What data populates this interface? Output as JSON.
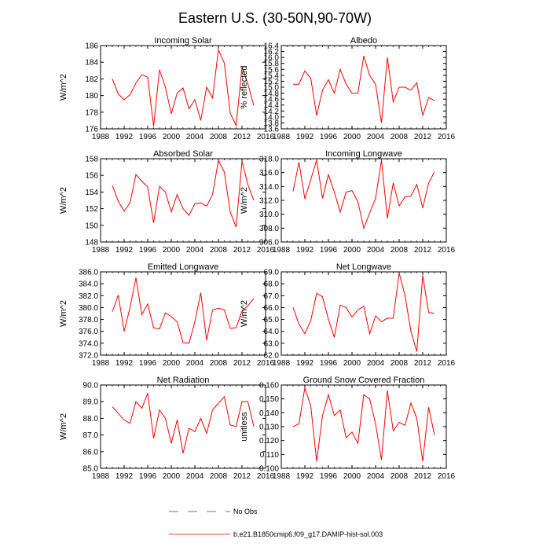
{
  "title": "Eastern U.S. (30-50N,90-70W)",
  "legend": {
    "obs_label": "No Obs",
    "model_label": "b.e21.B1850cmip6.f09_g17.DAMIP-hist-sol.003",
    "obs_color": "#3a3aa8",
    "model_color": "#ff0000"
  },
  "chart_data": [
    {
      "type": "line",
      "title": "Incoming Solar",
      "ylabel": "W/m^2",
      "xlim": [
        1988,
        2016
      ],
      "xticks": [
        1988,
        1992,
        1996,
        2000,
        2004,
        2008,
        2012,
        2016
      ],
      "ylim": [
        176,
        186
      ],
      "yticks": [
        "176",
        "178",
        "180",
        "182",
        "184",
        "186"
      ],
      "x": [
        1990,
        1991,
        1992,
        1993,
        1994,
        1995,
        1996,
        1997,
        1998,
        1999,
        2000,
        2001,
        2002,
        2003,
        2004,
        2005,
        2006,
        2007,
        2008,
        2009,
        2010,
        2011,
        2012,
        2013,
        2014
      ],
      "series": [
        {
          "values": [
            182.0,
            180.2,
            179.5,
            180.1,
            181.5,
            182.5,
            182.2,
            176.3,
            183.1,
            181.0,
            177.8,
            180.3,
            180.9,
            178.4,
            179.5,
            177.0,
            181.0,
            179.7,
            185.5,
            183.9,
            177.9,
            176.4,
            183.4,
            181.4,
            178.8
          ]
        }
      ]
    },
    {
      "type": "line",
      "title": "Albedo",
      "ylabel": "% reflected",
      "xlim": [
        1988,
        2016
      ],
      "xticks": [
        1988,
        1992,
        1996,
        2000,
        2004,
        2008,
        2012,
        2016
      ],
      "ylim": [
        13.6,
        16.4
      ],
      "yticks": [
        "13.6",
        "13.8",
        "14.0",
        "14.2",
        "14.4",
        "14.6",
        "14.8",
        "15.0",
        "15.2",
        "15.4",
        "15.6",
        "15.8",
        "16.0",
        "16.2",
        "16.4"
      ],
      "x": [
        1990,
        1991,
        1992,
        1993,
        1994,
        1995,
        1996,
        1997,
        1998,
        1999,
        2000,
        2001,
        2002,
        2003,
        2004,
        2005,
        2006,
        2007,
        2008,
        2009,
        2010,
        2011,
        2012,
        2013,
        2014
      ],
      "series": [
        {
          "values": [
            15.1,
            15.1,
            15.55,
            15.3,
            14.05,
            14.9,
            15.25,
            14.8,
            15.6,
            15.1,
            14.8,
            14.8,
            16.05,
            15.4,
            15.1,
            13.8,
            16.0,
            14.5,
            15.0,
            15.0,
            14.9,
            15.15,
            14.05,
            14.65,
            14.55
          ]
        }
      ]
    },
    {
      "type": "line",
      "title": "Absorbed Solar",
      "ylabel": "W/m^2",
      "xlim": [
        1988,
        2016
      ],
      "xticks": [
        1988,
        1992,
        1996,
        2000,
        2004,
        2008,
        2012,
        2016
      ],
      "ylim": [
        148,
        158
      ],
      "yticks": [
        "148",
        "150",
        "152",
        "154",
        "156",
        "158"
      ],
      "x": [
        1990,
        1991,
        1992,
        1993,
        1994,
        1995,
        1996,
        1997,
        1998,
        1999,
        2000,
        2001,
        2002,
        2003,
        2004,
        2005,
        2006,
        2007,
        2008,
        2009,
        2010,
        2011,
        2012,
        2013,
        2014
      ],
      "series": [
        {
          "values": [
            154.8,
            152.9,
            151.7,
            152.7,
            156.1,
            155.3,
            154.6,
            150.3,
            154.7,
            154.0,
            151.6,
            153.7,
            152.0,
            151.2,
            152.6,
            152.7,
            152.3,
            153.7,
            157.8,
            156.4,
            151.6,
            149.8,
            157.7,
            154.9,
            153.0
          ]
        }
      ]
    },
    {
      "type": "line",
      "title": "Incoming Longwave",
      "ylabel": "W/m^2",
      "xlim": [
        1988,
        2016
      ],
      "xticks": [
        1988,
        1992,
        1996,
        2000,
        2004,
        2008,
        2012,
        2016
      ],
      "ylim": [
        306,
        318
      ],
      "yticks": [
        "306.0",
        "308.0",
        "310.0",
        "312.0",
        "314.0",
        "316.0",
        "318.0"
      ],
      "x": [
        1990,
        1991,
        1992,
        1993,
        1994,
        1995,
        1996,
        1997,
        1998,
        1999,
        2000,
        2001,
        2002,
        2003,
        2004,
        2005,
        2006,
        2007,
        2008,
        2009,
        2010,
        2011,
        2012,
        2013,
        2014
      ],
      "series": [
        {
          "values": [
            313.3,
            317.5,
            312.2,
            315.0,
            317.8,
            312.3,
            315.7,
            313.2,
            310.3,
            313.2,
            313.4,
            311.8,
            308.0,
            310.2,
            312.3,
            317.8,
            309.4,
            314.5,
            311.2,
            312.5,
            312.6,
            314.3,
            310.9,
            314.5,
            316.1
          ]
        }
      ]
    },
    {
      "type": "line",
      "title": "Emitted Longwave",
      "ylabel": "W/m^2",
      "xlim": [
        1988,
        2016
      ],
      "xticks": [
        1988,
        1992,
        1996,
        2000,
        2004,
        2008,
        2012,
        2016
      ],
      "ylim": [
        372,
        386
      ],
      "yticks": [
        "372.0",
        "374.0",
        "376.0",
        "378.0",
        "380.0",
        "382.0",
        "384.0",
        "386.0"
      ],
      "x": [
        1990,
        1991,
        1992,
        1993,
        1994,
        1995,
        1996,
        1997,
        1998,
        1999,
        2000,
        2001,
        2002,
        2003,
        2004,
        2005,
        2006,
        2007,
        2008,
        2009,
        2010,
        2011,
        2012,
        2013,
        2014
      ],
      "series": [
        {
          "values": [
            379.3,
            382.1,
            376.0,
            380.0,
            385.0,
            378.8,
            380.6,
            376.6,
            376.4,
            379.1,
            378.5,
            377.6,
            374.1,
            374.0,
            377.6,
            382.5,
            374.5,
            379.6,
            379.9,
            379.6,
            376.5,
            376.6,
            379.4,
            380.3,
            381.5
          ]
        }
      ]
    },
    {
      "type": "line",
      "title": "Net Longwave",
      "ylabel": "W/m^2",
      "xlim": [
        1988,
        2016
      ],
      "xticks": [
        1988,
        1992,
        1996,
        2000,
        2004,
        2008,
        2012,
        2016
      ],
      "ylim": [
        62,
        69
      ],
      "yticks": [
        "62.0",
        "63.0",
        "64.0",
        "65.0",
        "66.0",
        "67.0",
        "68.0",
        "69.0"
      ],
      "x": [
        1990,
        1991,
        1992,
        1993,
        1994,
        1995,
        1996,
        1997,
        1998,
        1999,
        2000,
        2001,
        2002,
        2003,
        2004,
        2005,
        2006,
        2007,
        2008,
        2009,
        2010,
        2011,
        2012,
        2013,
        2014
      ],
      "series": [
        {
          "values": [
            66.0,
            64.6,
            63.8,
            64.9,
            67.2,
            66.9,
            65.0,
            63.5,
            66.2,
            66.0,
            65.2,
            65.8,
            66.1,
            63.8,
            65.3,
            64.8,
            65.1,
            65.1,
            68.9,
            67.0,
            64.0,
            62.3,
            68.7,
            65.6,
            65.5
          ]
        }
      ]
    },
    {
      "type": "line",
      "title": "Net Radiation",
      "ylabel": "W/m^2",
      "xlim": [
        1988,
        2016
      ],
      "xticks": [
        1988,
        1992,
        1996,
        2000,
        2004,
        2008,
        2012,
        2016
      ],
      "ylim": [
        85,
        90
      ],
      "yticks": [
        "85.0",
        "86.0",
        "87.0",
        "88.0",
        "89.0",
        "90.0"
      ],
      "x": [
        1990,
        1991,
        1992,
        1993,
        1994,
        1995,
        1996,
        1997,
        1998,
        1999,
        2000,
        2001,
        2002,
        2003,
        2004,
        2005,
        2006,
        2007,
        2008,
        2009,
        2010,
        2011,
        2012,
        2013,
        2014
      ],
      "series": [
        {
          "values": [
            88.7,
            88.3,
            87.9,
            87.7,
            89.0,
            88.6,
            89.5,
            86.8,
            88.5,
            88.0,
            86.5,
            87.9,
            85.9,
            87.4,
            87.2,
            88.0,
            87.1,
            88.5,
            88.9,
            89.3,
            87.6,
            87.5,
            89.0,
            89.0,
            87.5
          ]
        }
      ]
    },
    {
      "type": "line",
      "title": "Ground Snow Covered Fraction",
      "ylabel": "unitless",
      "xlim": [
        1988,
        2016
      ],
      "xticks": [
        1988,
        1992,
        1996,
        2000,
        2004,
        2008,
        2012,
        2016
      ],
      "ylim": [
        0.1,
        0.16
      ],
      "yticks": [
        "0.100",
        "0.110",
        "0.120",
        "0.130",
        "0.140",
        "0.150",
        "0.160"
      ],
      "x": [
        1990,
        1991,
        1992,
        1993,
        1994,
        1995,
        1996,
        1997,
        1998,
        1999,
        2000,
        2001,
        2002,
        2003,
        2004,
        2005,
        2006,
        2007,
        2008,
        2009,
        2010,
        2011,
        2012,
        2013,
        2014
      ],
      "series": [
        {
          "values": [
            0.13,
            0.132,
            0.158,
            0.145,
            0.105,
            0.138,
            0.153,
            0.138,
            0.142,
            0.122,
            0.126,
            0.118,
            0.153,
            0.15,
            0.132,
            0.106,
            0.156,
            0.127,
            0.133,
            0.131,
            0.147,
            0.136,
            0.105,
            0.144,
            0.124
          ]
        }
      ]
    }
  ]
}
